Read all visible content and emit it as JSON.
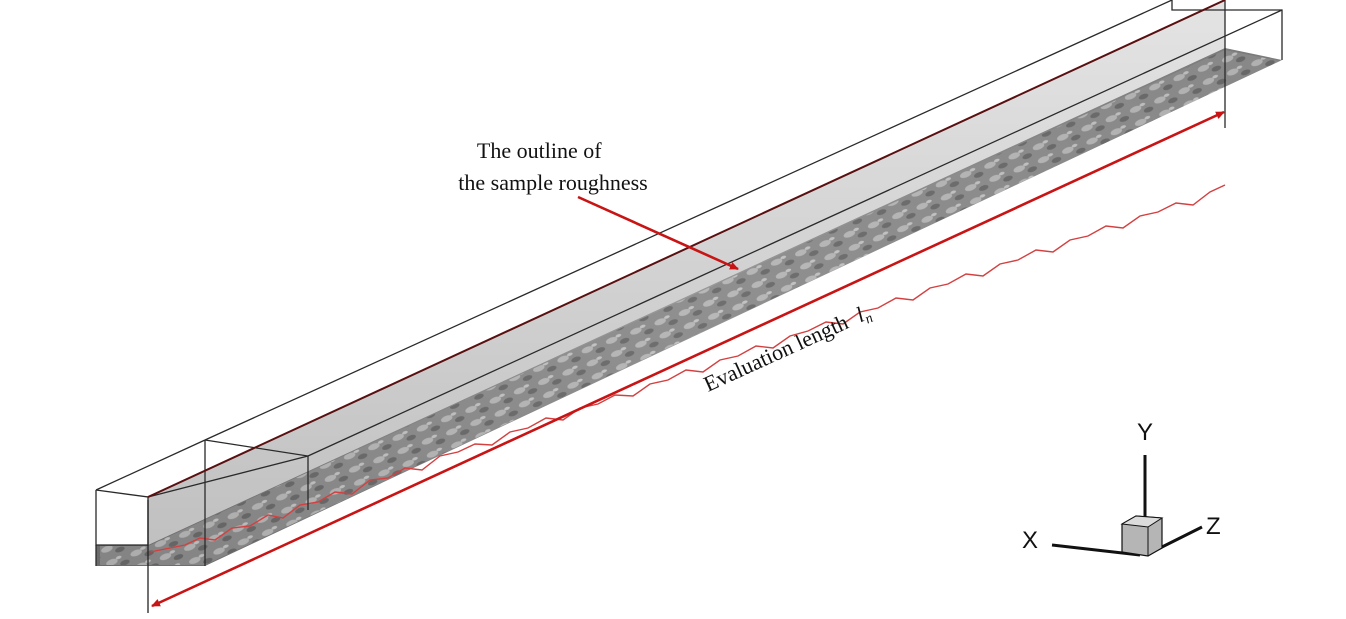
{
  "annotations": {
    "outline_line1": "The outline",
    "outline_line2": "the sample roughness",
    "outline_of": "of",
    "evaluation_length": "Evaluation length",
    "evaluation_symbol": "l",
    "evaluation_subscript": "n"
  },
  "axes": {
    "x_label": "X",
    "y_label": "Y",
    "z_label": "Z"
  },
  "colors": {
    "arrow": "#c81414",
    "profile_line": "#d44040",
    "box_edge": "#2a2a2a",
    "surface_dark": "#5a5a5a",
    "surface_light": "#d8d8d8",
    "wall": "#c9c9c9"
  }
}
